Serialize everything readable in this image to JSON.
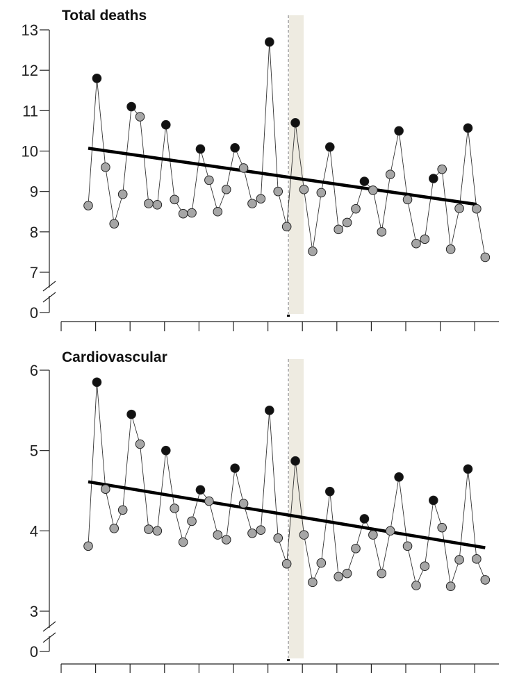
{
  "chart_data": [
    {
      "type": "scatter",
      "title": "Total deaths",
      "axis_break": true,
      "yticks": [
        0,
        7,
        8,
        9,
        10,
        11,
        12,
        13
      ],
      "ylim": [
        7,
        13
      ],
      "x_count": 48,
      "highlight_index": 24,
      "values": [
        8.65,
        11.8,
        9.6,
        8.2,
        8.93,
        11.1,
        10.85,
        8.7,
        8.67,
        10.65,
        8.8,
        8.45,
        8.47,
        10.05,
        9.28,
        8.5,
        9.05,
        10.08,
        9.58,
        8.7,
        8.82,
        12.7,
        9.0,
        8.13,
        10.7,
        9.05,
        7.52,
        8.97,
        10.1,
        8.06,
        8.23,
        8.57,
        9.25,
        9.03,
        8.0,
        9.42,
        10.5,
        8.8,
        7.71,
        7.82,
        9.32,
        9.55,
        7.57,
        8.58,
        10.57,
        8.57,
        7.37
      ],
      "peak_indices": [
        1,
        5,
        9,
        13,
        17,
        21,
        24,
        28,
        32,
        36,
        40,
        44
      ],
      "trend": {
        "x_start": 0,
        "x_end": 45,
        "y_start": 10.07,
        "y_end": 8.68
      },
      "colors": {
        "peak": "#111111",
        "other": "#a6a6a6",
        "trend": "#000000",
        "band": "#eeebe1"
      }
    },
    {
      "type": "scatter",
      "title": "Cardiovascular",
      "axis_break": true,
      "yticks": [
        0,
        3,
        4,
        5,
        6
      ],
      "ylim": [
        3,
        6
      ],
      "x_count": 48,
      "highlight_index": 24,
      "values": [
        3.81,
        5.85,
        4.52,
        4.03,
        4.26,
        5.45,
        5.08,
        4.02,
        4.0,
        5.0,
        4.28,
        3.86,
        4.12,
        4.51,
        4.37,
        3.95,
        3.89,
        4.78,
        4.34,
        3.97,
        4.01,
        5.5,
        3.91,
        3.59,
        4.87,
        3.95,
        3.36,
        3.6,
        4.49,
        3.43,
        3.47,
        3.78,
        4.15,
        3.95,
        3.47,
        4.0,
        4.67,
        3.81,
        3.32,
        3.56,
        4.38,
        4.04,
        3.31,
        3.64,
        4.77,
        3.65,
        3.39
      ],
      "peak_indices": [
        1,
        5,
        9,
        13,
        17,
        21,
        24,
        28,
        32,
        36,
        40,
        44
      ],
      "trend": {
        "x_start": 0,
        "x_end": 46,
        "y_start": 4.61,
        "y_end": 3.79
      },
      "colors": {
        "peak": "#111111",
        "other": "#a6a6a6",
        "trend": "#000000",
        "band": "#eeebe1"
      }
    }
  ]
}
